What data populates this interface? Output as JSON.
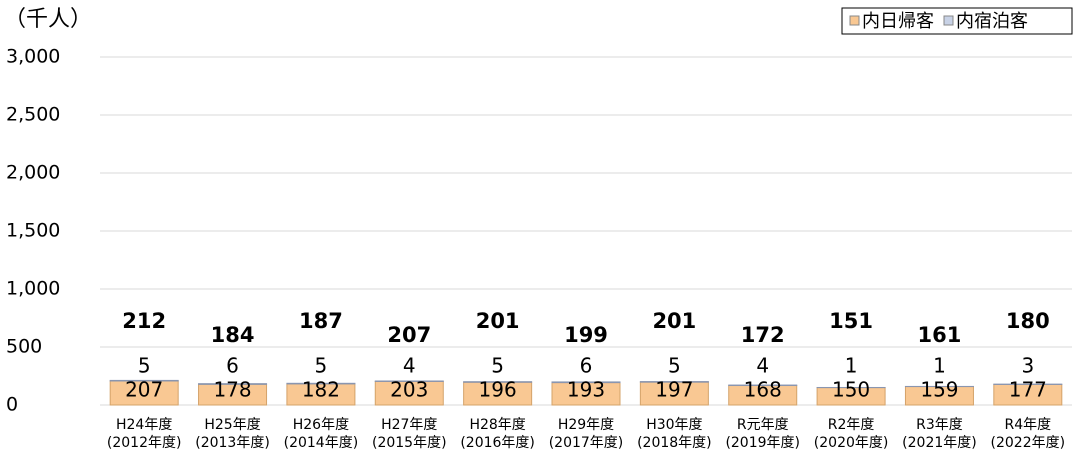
{
  "chart_data": {
    "type": "stacked_bar",
    "unit_label": "（千人）",
    "categories": [
      "H24年度\n(2012年度)",
      "H25年度\n(2013年度)",
      "H26年度\n(2014年度)",
      "H27年度\n(2015年度)",
      "H28年度\n(2016年度)",
      "H29年度\n(2017年度)",
      "H30年度\n(2018年度)",
      "R元年度\n(2019年度)",
      "R2年度\n(2020年度)",
      "R3年度\n(2021年度)",
      "R4年度\n(2022年度)"
    ],
    "series": [
      {
        "name": "内日帰客",
        "color": "#f9c893",
        "values": [
          207,
          178,
          182,
          203,
          196,
          193,
          197,
          168,
          150,
          159,
          177
        ]
      },
      {
        "name": "内宿泊客",
        "color": "#c8d2e6",
        "values": [
          5,
          6,
          5,
          4,
          5,
          6,
          5,
          4,
          1,
          1,
          3
        ]
      }
    ],
    "totals": [
      212,
      184,
      187,
      207,
      201,
      199,
      201,
      172,
      151,
      161,
      180
    ],
    "ylim": [
      0,
      3000
    ],
    "yticks": [
      0,
      500,
      {
        "value": 1000,
        "label": "1,000"
      },
      {
        "value": 1500,
        "label": "1,500"
      },
      {
        "value": 2000,
        "label": "2,000"
      },
      {
        "value": 2500,
        "label": "2,500"
      },
      {
        "value": 3000,
        "label": "3,000"
      }
    ],
    "grid": true,
    "legend": "top-right"
  }
}
